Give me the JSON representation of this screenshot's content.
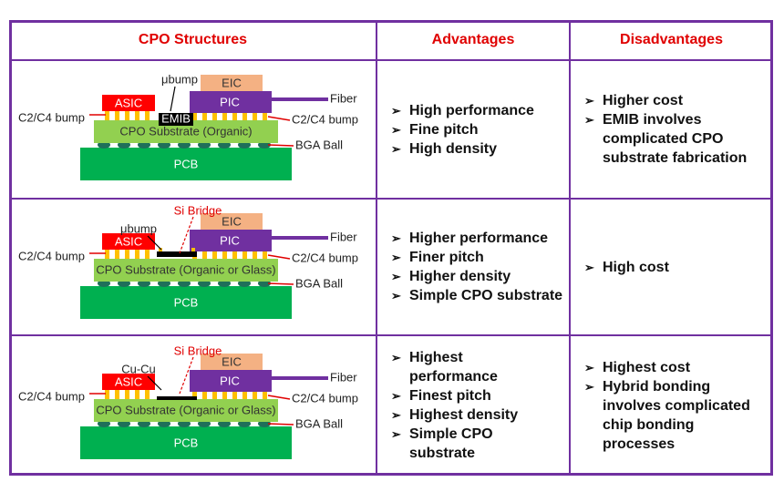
{
  "table": {
    "headers": [
      "CPO Structures",
      "Advantages",
      "Disadvantages"
    ],
    "rows": [
      {
        "structure": {
          "top_label": "μbump",
          "eic": "EIC",
          "asic": "ASIC",
          "pic": "PIC",
          "fiber": "Fiber",
          "bump_left": "C2/C4 bump",
          "bump_right": "C2/C4 bump",
          "bridge": "EMIB",
          "substrate": "CPO Substrate (Organic)",
          "bga": "BGA Ball",
          "pcb": "PCB"
        },
        "advantages": [
          "High performance",
          "Fine pitch",
          "High density"
        ],
        "disadvantages": [
          "Higher cost",
          "EMIB involves complicated CPO substrate fabrication"
        ]
      },
      {
        "structure": {
          "top_label": "μbump",
          "bridge_label": "Si Bridge",
          "eic": "EIC",
          "asic": "ASIC",
          "pic": "PIC",
          "fiber": "Fiber",
          "bump_left": "C2/C4 bump",
          "bump_right": "C2/C4 bump",
          "substrate": "CPO Substrate (Organic or Glass)",
          "bga": "BGA Ball",
          "pcb": "PCB"
        },
        "advantages": [
          "Higher performance",
          "Finer pitch",
          "Higher density",
          "Simple CPO substrate"
        ],
        "disadvantages": [
          "High cost"
        ]
      },
      {
        "structure": {
          "top_label": "Cu-Cu",
          "bridge_label": "Si Bridge",
          "eic": "EIC",
          "asic": "ASIC",
          "pic": "PIC",
          "fiber": "Fiber",
          "bump_left": "C2/C4 bump",
          "bump_right": "C2/C4 bump",
          "substrate": "CPO Substrate (Organic or Glass)",
          "bga": "BGA Ball",
          "pcb": "PCB"
        },
        "advantages": [
          "Highest performance",
          "Finest pitch",
          "Highest density",
          "Simple CPO substrate"
        ],
        "disadvantages": [
          "Highest cost",
          "Hybrid bonding involves complicated chip bonding processes"
        ]
      }
    ]
  }
}
